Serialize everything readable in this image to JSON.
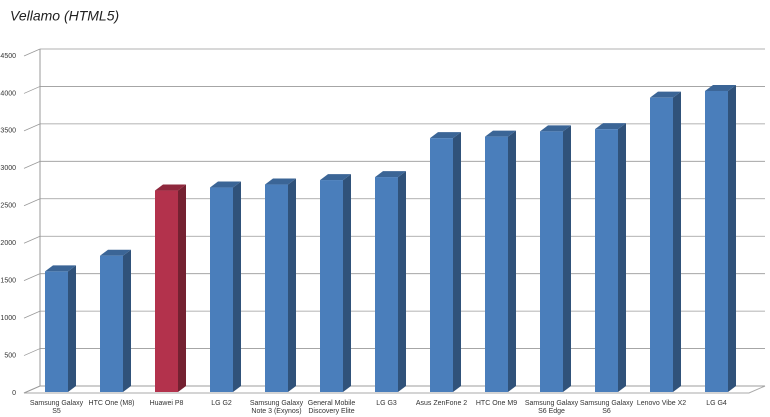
{
  "chart_data": {
    "type": "bar3d",
    "title": "Vellamo (HTML5)",
    "categories": [
      "Samsung Galaxy S5",
      "HTC One (M8)",
      "Huawei P8",
      "LG G2",
      "Samsung Galaxy Note 3 (Exynos)",
      "General Mobile Discovery Elite",
      "LG G3",
      "Asus ZenFone 2",
      "HTC One M9",
      "Samsung Galaxy S6 Edge",
      "Samsung Galaxy S6",
      "Lenovo Vibe X2",
      "LG G4"
    ],
    "values": [
      1610,
      1820,
      2690,
      2730,
      2770,
      2830,
      2870,
      3390,
      3410,
      3480,
      3510,
      3930,
      4020
    ],
    "colors": [
      "#4a7ebb",
      "#4a7ebb",
      "#b3324c",
      "#4a7ebb",
      "#4a7ebb",
      "#4a7ebb",
      "#4a7ebb",
      "#4a7ebb",
      "#4a7ebb",
      "#4a7ebb",
      "#4a7ebb",
      "#4a7ebb",
      "#4a7ebb"
    ],
    "ylim": [
      0,
      4500
    ],
    "yticks": [
      0,
      500,
      1000,
      1500,
      2000,
      2500,
      3000,
      3500,
      4000,
      4500
    ],
    "grid": true
  }
}
